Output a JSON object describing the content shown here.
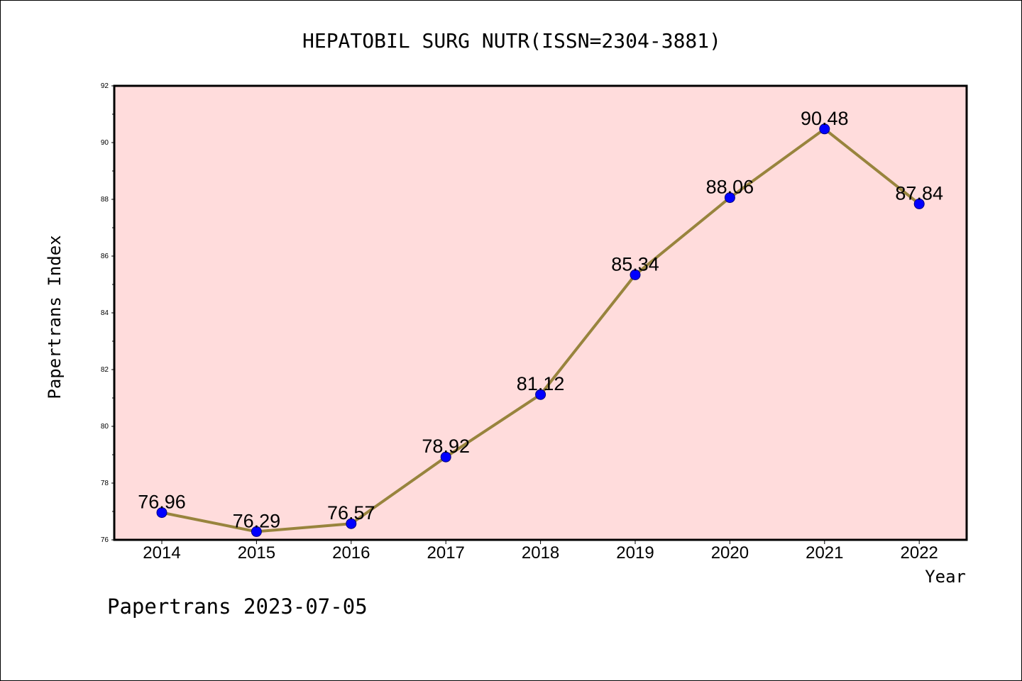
{
  "chart_data": {
    "type": "line",
    "title": "HEPATOBIL SURG NUTR(ISSN=2304-3881)",
    "xlabel": "Year",
    "ylabel": "Papertrans Index",
    "x": [
      "2014",
      "2015",
      "2016",
      "2017",
      "2018",
      "2019",
      "2020",
      "2021",
      "2022"
    ],
    "series": [
      {
        "values": [
          76.96,
          76.29,
          76.57,
          78.92,
          81.12,
          85.34,
          88.06,
          90.48,
          87.84
        ],
        "data_labels": [
          "76.96",
          "76.29",
          "76.57",
          "78.92",
          "81.12",
          "85.34",
          "88.06",
          "90.48",
          "87.84"
        ],
        "line_color": "#98843d",
        "marker_color": "#0000ff"
      }
    ],
    "ylim": [
      76,
      92
    ],
    "yticks": [
      76,
      78,
      80,
      82,
      84,
      86,
      88,
      90,
      92
    ],
    "grid": false,
    "legend": "none",
    "plot_background": "#ffdcdc"
  },
  "footer": {
    "text": "Papertrans 2023-07-05"
  }
}
